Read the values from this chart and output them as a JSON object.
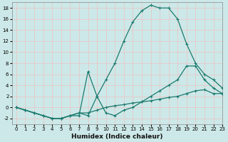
{
  "xlabel": "Humidex (Indice chaleur)",
  "background_color": "#cde8e8",
  "grid_color": "#e8c8c8",
  "line_color": "#1a7a6e",
  "xlim": [
    -0.5,
    23
  ],
  "ylim": [
    -3,
    19
  ],
  "xticks": [
    0,
    1,
    2,
    3,
    4,
    5,
    6,
    7,
    8,
    9,
    10,
    11,
    12,
    13,
    14,
    15,
    16,
    17,
    18,
    19,
    20,
    21,
    22,
    23
  ],
  "yticks": [
    -2,
    0,
    2,
    4,
    6,
    8,
    10,
    12,
    14,
    16,
    18
  ],
  "curve1_x": [
    0,
    1,
    2,
    3,
    4,
    5,
    6,
    7,
    8,
    9,
    10,
    11,
    12,
    13,
    14,
    15,
    16,
    17,
    18,
    19,
    20,
    21,
    22,
    23
  ],
  "curve1_y": [
    0,
    -0.5,
    -1,
    -1.5,
    -2,
    -2,
    -1.5,
    -1,
    -1.5,
    2,
    5,
    8,
    12,
    15.5,
    17.5,
    18.5,
    18,
    18,
    16,
    11.5,
    8,
    6,
    5,
    3.5
  ],
  "curve2_x": [
    0,
    1,
    2,
    3,
    4,
    5,
    6,
    7,
    8,
    9,
    10,
    11,
    12,
    13,
    14,
    15,
    16,
    17,
    18,
    19,
    20,
    21,
    22,
    23
  ],
  "curve2_y": [
    0,
    -0.5,
    -1,
    -1.5,
    -2,
    -2,
    -1.5,
    -1.5,
    6.5,
    2,
    -1,
    -1.5,
    -0.5,
    0,
    1,
    2,
    3,
    4,
    5,
    7.5,
    7.5,
    5,
    3.5,
    2.5
  ],
  "curve3_x": [
    0,
    1,
    2,
    3,
    4,
    5,
    6,
    7,
    8,
    9,
    10,
    11,
    12,
    13,
    14,
    15,
    16,
    17,
    18,
    19,
    20,
    21,
    22,
    23
  ],
  "curve3_y": [
    0,
    -0.5,
    -1,
    -1.5,
    -2,
    -2,
    -1.5,
    -1,
    -1,
    -0.5,
    0,
    0.3,
    0.5,
    0.8,
    1,
    1.2,
    1.5,
    1.8,
    2,
    2.5,
    3,
    3.2,
    2.5,
    2.5
  ]
}
